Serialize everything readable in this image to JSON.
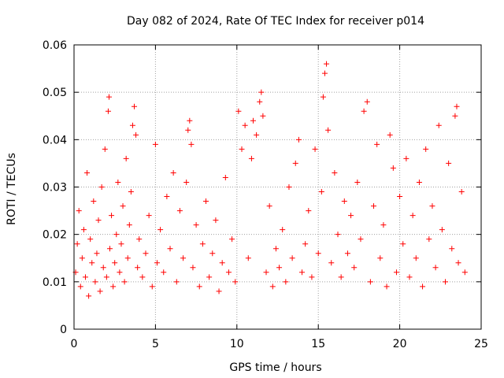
{
  "chart_data": {
    "type": "scatter",
    "title": "Day 082 of 2024, Rate Of TEC Index for receiver p014",
    "xlabel": "GPS time / hours",
    "ylabel": "ROTI / TECUs",
    "xlim": [
      0,
      25
    ],
    "ylim": [
      0,
      0.06
    ],
    "xticks": [
      0,
      5,
      10,
      15,
      20,
      25
    ],
    "xtick_labels": [
      "0",
      "5",
      "10",
      "15",
      "20",
      "25"
    ],
    "yticks": [
      0,
      0.01,
      0.02,
      0.03,
      0.04,
      0.05,
      0.06
    ],
    "ytick_labels": [
      "0",
      "0.01",
      "0.02",
      "0.03",
      "0.04",
      "0.05",
      "0.06"
    ],
    "grid": true,
    "marker": "+",
    "color": "#ff0000",
    "series": [
      {
        "name": "ROTI",
        "points": [
          [
            0.1,
            0.012
          ],
          [
            0.2,
            0.018
          ],
          [
            0.3,
            0.025
          ],
          [
            0.4,
            0.009
          ],
          [
            0.5,
            0.015
          ],
          [
            0.6,
            0.021
          ],
          [
            0.7,
            0.011
          ],
          [
            0.8,
            0.033
          ],
          [
            0.9,
            0.007
          ],
          [
            1.0,
            0.019
          ],
          [
            1.1,
            0.014
          ],
          [
            1.2,
            0.027
          ],
          [
            1.3,
            0.01
          ],
          [
            1.4,
            0.016
          ],
          [
            1.5,
            0.023
          ],
          [
            1.6,
            0.008
          ],
          [
            1.7,
            0.03
          ],
          [
            1.8,
            0.013
          ],
          [
            1.9,
            0.038
          ],
          [
            2.0,
            0.011
          ],
          [
            2.1,
            0.046
          ],
          [
            2.15,
            0.049
          ],
          [
            2.2,
            0.017
          ],
          [
            2.3,
            0.024
          ],
          [
            2.4,
            0.009
          ],
          [
            2.5,
            0.014
          ],
          [
            2.6,
            0.02
          ],
          [
            2.7,
            0.031
          ],
          [
            2.8,
            0.012
          ],
          [
            2.9,
            0.018
          ],
          [
            3.0,
            0.026
          ],
          [
            3.1,
            0.01
          ],
          [
            3.2,
            0.036
          ],
          [
            3.3,
            0.015
          ],
          [
            3.4,
            0.022
          ],
          [
            3.5,
            0.029
          ],
          [
            3.6,
            0.043
          ],
          [
            3.7,
            0.047
          ],
          [
            3.8,
            0.041
          ],
          [
            3.9,
            0.013
          ],
          [
            4.0,
            0.019
          ],
          [
            4.2,
            0.011
          ],
          [
            4.4,
            0.016
          ],
          [
            4.6,
            0.024
          ],
          [
            4.8,
            0.009
          ],
          [
            5.0,
            0.039
          ],
          [
            5.1,
            0.014
          ],
          [
            5.3,
            0.021
          ],
          [
            5.5,
            0.012
          ],
          [
            5.7,
            0.028
          ],
          [
            5.9,
            0.017
          ],
          [
            6.1,
            0.033
          ],
          [
            6.3,
            0.01
          ],
          [
            6.5,
            0.025
          ],
          [
            6.7,
            0.015
          ],
          [
            6.9,
            0.031
          ],
          [
            7.0,
            0.042
          ],
          [
            7.1,
            0.044
          ],
          [
            7.2,
            0.039
          ],
          [
            7.3,
            0.013
          ],
          [
            7.5,
            0.022
          ],
          [
            7.7,
            0.009
          ],
          [
            7.9,
            0.018
          ],
          [
            8.1,
            0.027
          ],
          [
            8.3,
            0.011
          ],
          [
            8.5,
            0.016
          ],
          [
            8.7,
            0.023
          ],
          [
            8.9,
            0.008
          ],
          [
            9.1,
            0.014
          ],
          [
            9.3,
            0.032
          ],
          [
            9.5,
            0.012
          ],
          [
            9.7,
            0.019
          ],
          [
            9.9,
            0.01
          ],
          [
            10.1,
            0.046
          ],
          [
            10.3,
            0.038
          ],
          [
            10.5,
            0.043
          ],
          [
            10.7,
            0.015
          ],
          [
            10.9,
            0.036
          ],
          [
            11.0,
            0.044
          ],
          [
            11.2,
            0.041
          ],
          [
            11.4,
            0.048
          ],
          [
            11.5,
            0.05
          ],
          [
            11.6,
            0.045
          ],
          [
            11.8,
            0.012
          ],
          [
            12.0,
            0.026
          ],
          [
            12.2,
            0.009
          ],
          [
            12.4,
            0.017
          ],
          [
            12.6,
            0.013
          ],
          [
            12.8,
            0.021
          ],
          [
            13.0,
            0.01
          ],
          [
            13.2,
            0.03
          ],
          [
            13.4,
            0.015
          ],
          [
            13.6,
            0.035
          ],
          [
            13.8,
            0.04
          ],
          [
            14.0,
            0.012
          ],
          [
            14.2,
            0.018
          ],
          [
            14.4,
            0.025
          ],
          [
            14.6,
            0.011
          ],
          [
            14.8,
            0.038
          ],
          [
            15.0,
            0.016
          ],
          [
            15.2,
            0.029
          ],
          [
            15.3,
            0.049
          ],
          [
            15.4,
            0.054
          ],
          [
            15.5,
            0.056
          ],
          [
            15.6,
            0.042
          ],
          [
            15.8,
            0.014
          ],
          [
            16.0,
            0.033
          ],
          [
            16.2,
            0.02
          ],
          [
            16.4,
            0.011
          ],
          [
            16.6,
            0.027
          ],
          [
            16.8,
            0.016
          ],
          [
            17.0,
            0.024
          ],
          [
            17.2,
            0.013
          ],
          [
            17.4,
            0.031
          ],
          [
            17.6,
            0.019
          ],
          [
            17.8,
            0.046
          ],
          [
            18.0,
            0.048
          ],
          [
            18.2,
            0.01
          ],
          [
            18.4,
            0.026
          ],
          [
            18.6,
            0.039
          ],
          [
            18.8,
            0.015
          ],
          [
            19.0,
            0.022
          ],
          [
            19.2,
            0.009
          ],
          [
            19.4,
            0.041
          ],
          [
            19.6,
            0.034
          ],
          [
            19.8,
            0.012
          ],
          [
            20.0,
            0.028
          ],
          [
            20.2,
            0.018
          ],
          [
            20.4,
            0.036
          ],
          [
            20.6,
            0.011
          ],
          [
            20.8,
            0.024
          ],
          [
            21.0,
            0.015
          ],
          [
            21.2,
            0.031
          ],
          [
            21.4,
            0.009
          ],
          [
            21.6,
            0.038
          ],
          [
            21.8,
            0.019
          ],
          [
            22.0,
            0.026
          ],
          [
            22.2,
            0.013
          ],
          [
            22.4,
            0.043
          ],
          [
            22.6,
            0.021
          ],
          [
            22.8,
            0.01
          ],
          [
            23.0,
            0.035
          ],
          [
            23.2,
            0.017
          ],
          [
            23.4,
            0.045
          ],
          [
            23.5,
            0.047
          ],
          [
            23.6,
            0.014
          ],
          [
            23.8,
            0.029
          ],
          [
            24.0,
            0.012
          ]
        ]
      }
    ]
  }
}
